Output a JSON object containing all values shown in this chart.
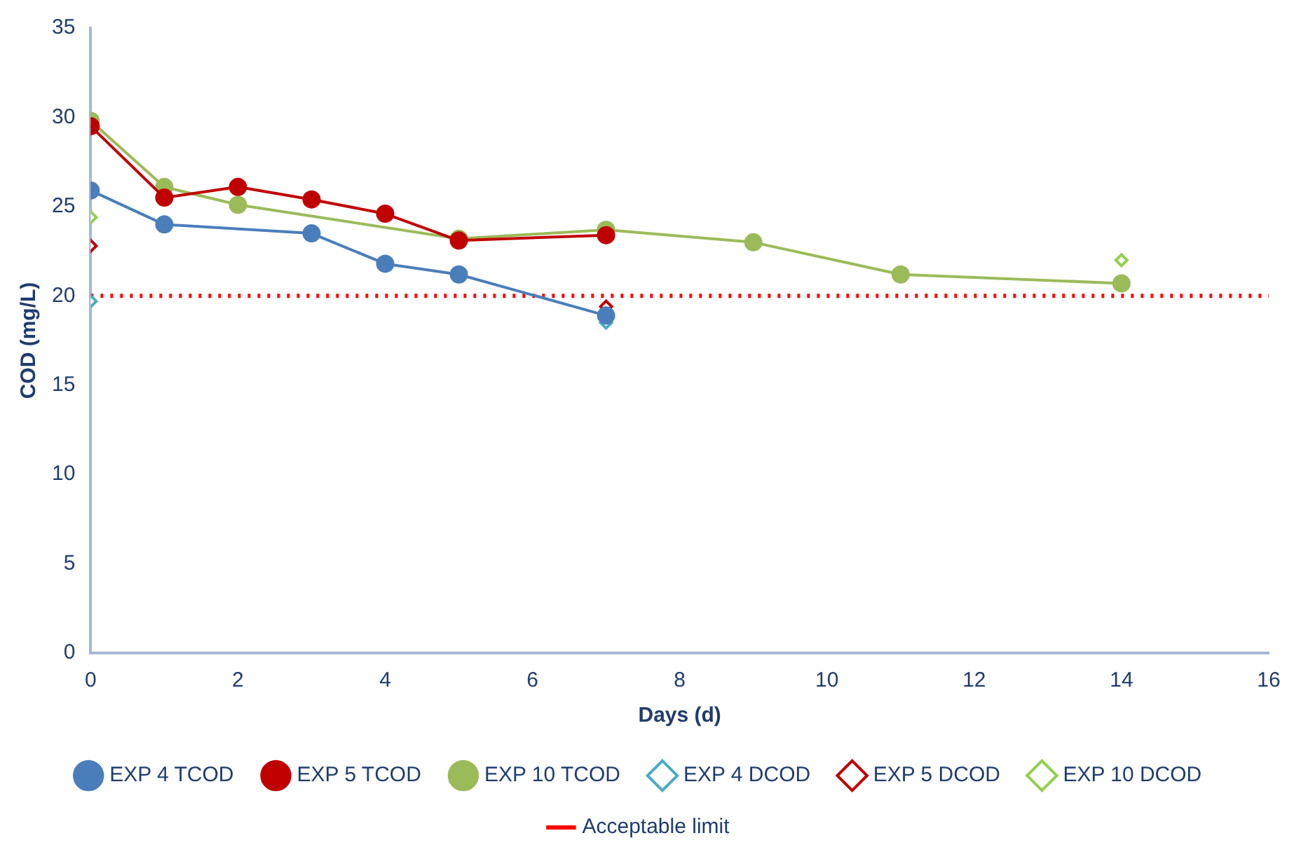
{
  "chart_data": {
    "type": "line",
    "xlabel": "Days (d)",
    "ylabel": "COD (mg/L)",
    "xlim": [
      0,
      16
    ],
    "xticks": [
      0,
      2,
      4,
      6,
      8,
      10,
      12,
      14,
      16
    ],
    "ylim": [
      0,
      35
    ],
    "yticks": [
      0,
      5,
      10,
      15,
      20,
      25,
      30,
      35
    ],
    "grid": false,
    "legend": "bottom",
    "series": [
      {
        "name": "EXP 4 TCOD",
        "marker": "circle",
        "color": "#4a7ebb",
        "x": [
          0,
          1,
          3,
          4,
          5,
          7
        ],
        "values": [
          25.9,
          24.0,
          23.5,
          21.8,
          21.2,
          18.9
        ]
      },
      {
        "name": "EXP 5 TCOD",
        "marker": "circle",
        "color": "#c00000",
        "x": [
          0,
          1,
          2,
          3,
          4,
          5,
          7
        ],
        "values": [
          29.5,
          25.5,
          26.1,
          25.4,
          24.6,
          23.1,
          23.4
        ]
      },
      {
        "name": "EXP 10 TCOD",
        "marker": "circle",
        "color": "#9bbb59",
        "x": [
          0,
          1,
          2,
          5,
          7,
          9,
          11,
          14
        ],
        "values": [
          29.8,
          26.1,
          25.1,
          23.2,
          23.7,
          23.0,
          21.2,
          20.7
        ]
      },
      {
        "name": "EXP 4 DCOD",
        "type": "scatter",
        "marker": "diamond",
        "color": "#4bacc6",
        "x": [
          0,
          7
        ],
        "values": [
          19.7,
          18.5
        ]
      },
      {
        "name": "EXP 5 DCOD",
        "type": "scatter",
        "marker": "diamond",
        "color": "#c00000",
        "x": [
          0,
          7
        ],
        "values": [
          22.8,
          19.4
        ]
      },
      {
        "name": "EXP 10 DCOD",
        "type": "scatter",
        "marker": "diamond",
        "color": "#92d050",
        "x": [
          0,
          14
        ],
        "values": [
          24.4,
          22.0
        ]
      }
    ],
    "ref_lines": [
      {
        "axis": "y",
        "value": 20,
        "label": "Acceptable limit",
        "color": "#ff0000",
        "line_style": "dotted"
      }
    ]
  }
}
